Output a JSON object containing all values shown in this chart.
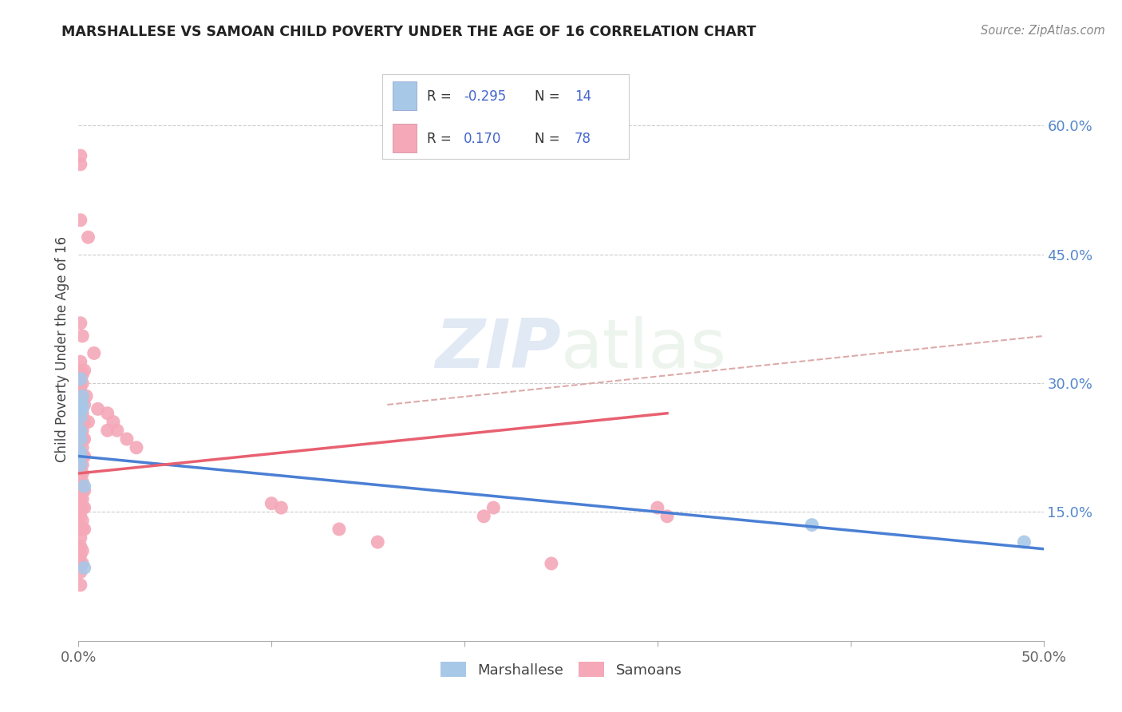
{
  "title": "MARSHALLESE VS SAMOAN CHILD POVERTY UNDER THE AGE OF 16 CORRELATION CHART",
  "source": "Source: ZipAtlas.com",
  "ylabel": "Child Poverty Under the Age of 16",
  "xlim": [
    0.0,
    0.5
  ],
  "ylim": [
    0.0,
    0.68
  ],
  "yticks": [
    0.15,
    0.3,
    0.45,
    0.6
  ],
  "ytick_labels": [
    "15.0%",
    "30.0%",
    "45.0%",
    "60.0%"
  ],
  "xticks": [
    0.0,
    0.1,
    0.2,
    0.3,
    0.4,
    0.5
  ],
  "xtick_labels": [
    "0.0%",
    "",
    "",
    "",
    "",
    "50.0%"
  ],
  "legend_r_blue": "-0.295",
  "legend_n_blue": "14",
  "legend_r_pink": "0.170",
  "legend_n_pink": "78",
  "blue_color": "#a8c8e8",
  "pink_color": "#f4a8b8",
  "blue_line_color": "#4a7fd4",
  "pink_line_color": "#e86070",
  "pink_dashed_color": "#ddaaaa",
  "marshallese_points": [
    [
      0.001,
      0.305
    ],
    [
      0.001,
      0.26
    ],
    [
      0.001,
      0.245
    ],
    [
      0.001,
      0.235
    ],
    [
      0.001,
      0.22
    ],
    [
      0.001,
      0.215
    ],
    [
      0.001,
      0.205
    ],
    [
      0.002,
      0.285
    ],
    [
      0.002,
      0.275
    ],
    [
      0.002,
      0.27
    ],
    [
      0.003,
      0.18
    ],
    [
      0.003,
      0.085
    ],
    [
      0.38,
      0.135
    ],
    [
      0.49,
      0.115
    ]
  ],
  "samoan_points": [
    [
      0.001,
      0.565
    ],
    [
      0.001,
      0.555
    ],
    [
      0.001,
      0.49
    ],
    [
      0.001,
      0.37
    ],
    [
      0.001,
      0.325
    ],
    [
      0.001,
      0.315
    ],
    [
      0.001,
      0.31
    ],
    [
      0.001,
      0.295
    ],
    [
      0.001,
      0.285
    ],
    [
      0.001,
      0.275
    ],
    [
      0.001,
      0.265
    ],
    [
      0.001,
      0.255
    ],
    [
      0.001,
      0.245
    ],
    [
      0.001,
      0.235
    ],
    [
      0.001,
      0.22
    ],
    [
      0.001,
      0.215
    ],
    [
      0.001,
      0.205
    ],
    [
      0.001,
      0.195
    ],
    [
      0.001,
      0.185
    ],
    [
      0.001,
      0.175
    ],
    [
      0.001,
      0.165
    ],
    [
      0.001,
      0.155
    ],
    [
      0.001,
      0.145
    ],
    [
      0.001,
      0.13
    ],
    [
      0.001,
      0.12
    ],
    [
      0.001,
      0.11
    ],
    [
      0.001,
      0.1
    ],
    [
      0.001,
      0.09
    ],
    [
      0.001,
      0.08
    ],
    [
      0.001,
      0.065
    ],
    [
      0.002,
      0.355
    ],
    [
      0.002,
      0.31
    ],
    [
      0.002,
      0.3
    ],
    [
      0.002,
      0.28
    ],
    [
      0.002,
      0.265
    ],
    [
      0.002,
      0.255
    ],
    [
      0.002,
      0.245
    ],
    [
      0.002,
      0.235
    ],
    [
      0.002,
      0.225
    ],
    [
      0.002,
      0.215
    ],
    [
      0.002,
      0.205
    ],
    [
      0.002,
      0.195
    ],
    [
      0.002,
      0.185
    ],
    [
      0.002,
      0.175
    ],
    [
      0.002,
      0.165
    ],
    [
      0.002,
      0.155
    ],
    [
      0.002,
      0.14
    ],
    [
      0.002,
      0.13
    ],
    [
      0.002,
      0.105
    ],
    [
      0.002,
      0.09
    ],
    [
      0.003,
      0.315
    ],
    [
      0.003,
      0.275
    ],
    [
      0.003,
      0.255
    ],
    [
      0.003,
      0.235
    ],
    [
      0.003,
      0.215
    ],
    [
      0.003,
      0.175
    ],
    [
      0.003,
      0.155
    ],
    [
      0.003,
      0.13
    ],
    [
      0.004,
      0.285
    ],
    [
      0.005,
      0.47
    ],
    [
      0.005,
      0.255
    ],
    [
      0.008,
      0.335
    ],
    [
      0.01,
      0.27
    ],
    [
      0.015,
      0.265
    ],
    [
      0.015,
      0.245
    ],
    [
      0.018,
      0.255
    ],
    [
      0.02,
      0.245
    ],
    [
      0.025,
      0.235
    ],
    [
      0.03,
      0.225
    ],
    [
      0.1,
      0.16
    ],
    [
      0.105,
      0.155
    ],
    [
      0.135,
      0.13
    ],
    [
      0.155,
      0.115
    ],
    [
      0.21,
      0.145
    ],
    [
      0.215,
      0.155
    ],
    [
      0.245,
      0.09
    ],
    [
      0.3,
      0.155
    ],
    [
      0.305,
      0.145
    ]
  ]
}
